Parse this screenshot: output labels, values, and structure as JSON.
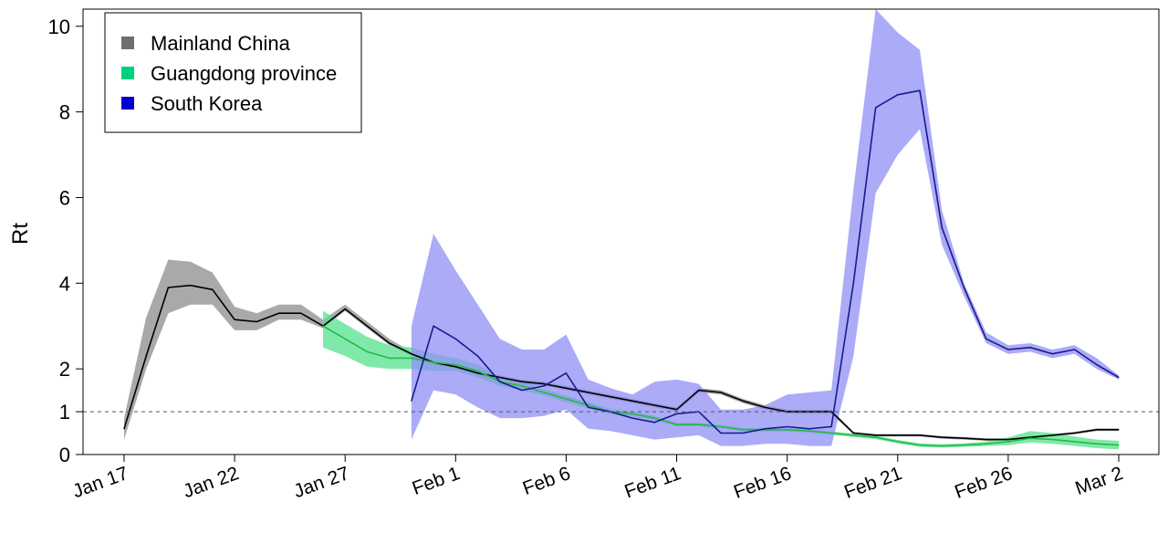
{
  "chart_data": {
    "type": "line",
    "ylabel": "Rt",
    "xlabel": "",
    "x_tick_labels": [
      "Jan 17",
      "Jan 22",
      "Jan 27",
      "Feb 1",
      "Feb 6",
      "Feb 11",
      "Feb 16",
      "Feb 21",
      "Feb 26",
      "Mar 2"
    ],
    "y_ticks": [
      0,
      1,
      2,
      4,
      6,
      8,
      10
    ],
    "ylim": [
      0,
      10.4
    ],
    "x_start_date": "2020-01-17",
    "reference_line": {
      "y": 1,
      "style": "dashed"
    },
    "grid": false,
    "legend_position": "top-left",
    "series": [
      {
        "name": "Mainland China",
        "color": "#000000",
        "band_color": "#8c8c8c",
        "legend_color": "#6e6e6e",
        "dates": [
          "2020-01-17",
          "2020-01-18",
          "2020-01-19",
          "2020-01-20",
          "2020-01-21",
          "2020-01-22",
          "2020-01-23",
          "2020-01-24",
          "2020-01-25",
          "2020-01-26",
          "2020-01-27",
          "2020-01-28",
          "2020-01-29",
          "2020-01-30",
          "2020-01-31",
          "2020-02-01",
          "2020-02-02",
          "2020-02-03",
          "2020-02-04",
          "2020-02-05",
          "2020-02-06",
          "2020-02-07",
          "2020-02-08",
          "2020-02-09",
          "2020-02-10",
          "2020-02-11",
          "2020-02-12",
          "2020-02-13",
          "2020-02-14",
          "2020-02-15",
          "2020-02-16",
          "2020-02-17",
          "2020-02-18",
          "2020-02-19",
          "2020-02-20",
          "2020-02-21",
          "2020-02-22",
          "2020-02-23",
          "2020-02-24",
          "2020-02-25",
          "2020-02-26",
          "2020-02-27",
          "2020-02-28",
          "2020-02-29",
          "2020-03-01",
          "2020-03-02"
        ],
        "values": [
          0.6,
          2.3,
          3.9,
          3.95,
          3.85,
          3.15,
          3.1,
          3.3,
          3.3,
          3.0,
          3.4,
          3.0,
          2.6,
          2.35,
          2.15,
          2.05,
          1.9,
          1.8,
          1.7,
          1.65,
          1.55,
          1.45,
          1.35,
          1.25,
          1.15,
          1.05,
          1.5,
          1.45,
          1.25,
          1.1,
          1.0,
          1.0,
          1.0,
          0.5,
          0.45,
          0.45,
          0.45,
          0.4,
          0.38,
          0.35,
          0.35,
          0.4,
          0.45,
          0.5,
          0.58,
          0.58
        ],
        "lower": [
          0.35,
          2.0,
          3.3,
          3.5,
          3.5,
          2.9,
          2.9,
          3.15,
          3.15,
          2.95,
          3.35,
          2.95,
          2.55,
          2.3,
          2.1,
          2.0,
          1.85,
          1.75,
          1.65,
          1.6,
          1.5,
          1.4,
          1.3,
          1.2,
          1.1,
          1.0,
          1.45,
          1.4,
          1.2,
          1.05,
          0.95,
          0.95,
          0.95,
          0.47,
          0.42,
          0.42,
          0.42,
          0.37,
          0.35,
          0.32,
          0.32,
          0.37,
          0.42,
          0.47,
          0.55,
          0.55
        ],
        "upper": [
          0.85,
          3.2,
          4.55,
          4.5,
          4.25,
          3.45,
          3.3,
          3.5,
          3.5,
          3.15,
          3.5,
          3.1,
          2.7,
          2.4,
          2.2,
          2.1,
          1.95,
          1.85,
          1.75,
          1.7,
          1.6,
          1.5,
          1.4,
          1.3,
          1.2,
          1.1,
          1.55,
          1.5,
          1.3,
          1.15,
          1.05,
          1.05,
          1.05,
          0.53,
          0.48,
          0.48,
          0.48,
          0.43,
          0.41,
          0.38,
          0.38,
          0.43,
          0.48,
          0.53,
          0.61,
          0.61
        ]
      },
      {
        "name": "Guangdong province",
        "color": "#22bb44",
        "band_color": "#55e28e",
        "legend_color": "#00d27a",
        "dates": [
          "2020-01-26",
          "2020-01-27",
          "2020-01-28",
          "2020-01-29",
          "2020-01-30",
          "2020-01-31",
          "2020-02-01",
          "2020-02-02",
          "2020-02-03",
          "2020-02-04",
          "2020-02-05",
          "2020-02-06",
          "2020-02-07",
          "2020-02-08",
          "2020-02-09",
          "2020-02-10",
          "2020-02-11",
          "2020-02-12",
          "2020-02-13",
          "2020-02-14",
          "2020-02-15",
          "2020-02-16",
          "2020-02-17",
          "2020-02-18",
          "2020-02-19",
          "2020-02-20",
          "2020-02-21",
          "2020-02-22",
          "2020-02-23",
          "2020-02-24",
          "2020-02-25",
          "2020-02-26",
          "2020-02-27",
          "2020-02-28",
          "2020-02-29",
          "2020-03-01",
          "2020-03-02"
        ],
        "values": [
          3.0,
          2.7,
          2.4,
          2.25,
          2.25,
          2.15,
          2.1,
          1.95,
          1.7,
          1.6,
          1.45,
          1.3,
          1.15,
          1.0,
          0.95,
          0.85,
          0.7,
          0.7,
          0.65,
          0.58,
          0.58,
          0.58,
          0.55,
          0.5,
          0.45,
          0.4,
          0.3,
          0.22,
          0.2,
          0.22,
          0.25,
          0.3,
          0.38,
          0.35,
          0.3,
          0.25,
          0.22
        ],
        "lower": [
          2.5,
          2.3,
          2.05,
          2.0,
          2.0,
          1.95,
          1.95,
          1.8,
          1.6,
          1.5,
          1.38,
          1.22,
          1.08,
          0.94,
          0.89,
          0.8,
          0.66,
          0.66,
          0.61,
          0.54,
          0.54,
          0.54,
          0.51,
          0.46,
          0.41,
          0.36,
          0.26,
          0.18,
          0.16,
          0.18,
          0.2,
          0.22,
          0.28,
          0.25,
          0.2,
          0.15,
          0.12
        ],
        "upper": [
          3.35,
          3.05,
          2.75,
          2.55,
          2.5,
          2.35,
          2.25,
          2.1,
          1.8,
          1.7,
          1.52,
          1.38,
          1.22,
          1.06,
          1.01,
          0.9,
          0.74,
          0.74,
          0.69,
          0.62,
          0.62,
          0.62,
          0.59,
          0.54,
          0.49,
          0.44,
          0.34,
          0.26,
          0.24,
          0.26,
          0.3,
          0.4,
          0.55,
          0.5,
          0.42,
          0.35,
          0.32
        ]
      },
      {
        "name": "South Korea",
        "color": "#1a1a8c",
        "band_color": "#8f8ff5",
        "legend_color": "#0000cc",
        "dates": [
          "2020-01-30",
          "2020-01-31",
          "2020-02-01",
          "2020-02-02",
          "2020-02-03",
          "2020-02-04",
          "2020-02-05",
          "2020-02-06",
          "2020-02-07",
          "2020-02-08",
          "2020-02-09",
          "2020-02-10",
          "2020-02-11",
          "2020-02-12",
          "2020-02-13",
          "2020-02-14",
          "2020-02-15",
          "2020-02-16",
          "2020-02-17",
          "2020-02-18",
          "2020-02-19",
          "2020-02-20",
          "2020-02-21",
          "2020-02-22",
          "2020-02-23",
          "2020-02-24",
          "2020-02-25",
          "2020-02-26",
          "2020-02-27",
          "2020-02-28",
          "2020-02-29",
          "2020-03-01",
          "2020-03-02"
        ],
        "values": [
          1.25,
          3.0,
          2.7,
          2.3,
          1.7,
          1.5,
          1.6,
          1.9,
          1.1,
          1.0,
          0.85,
          0.75,
          0.95,
          1.0,
          0.5,
          0.5,
          0.6,
          0.65,
          0.6,
          0.65,
          4.0,
          8.1,
          8.4,
          8.5,
          5.3,
          3.9,
          2.7,
          2.45,
          2.5,
          2.35,
          2.45,
          2.1,
          1.8
        ],
        "lower": [
          0.35,
          1.5,
          1.4,
          1.1,
          0.85,
          0.85,
          0.9,
          1.05,
          0.6,
          0.55,
          0.45,
          0.35,
          0.4,
          0.45,
          0.2,
          0.2,
          0.25,
          0.25,
          0.2,
          0.2,
          2.3,
          6.1,
          7.0,
          7.6,
          4.9,
          3.7,
          2.6,
          2.35,
          2.4,
          2.25,
          2.35,
          2.0,
          1.75
        ],
        "upper": [
          3.0,
          5.15,
          4.3,
          3.5,
          2.7,
          2.45,
          2.45,
          2.8,
          1.75,
          1.55,
          1.4,
          1.7,
          1.75,
          1.65,
          1.05,
          1.05,
          1.15,
          1.4,
          1.45,
          1.5,
          6.2,
          10.4,
          9.85,
          9.45,
          5.7,
          4.0,
          2.85,
          2.55,
          2.6,
          2.45,
          2.55,
          2.25,
          1.85
        ]
      }
    ]
  }
}
